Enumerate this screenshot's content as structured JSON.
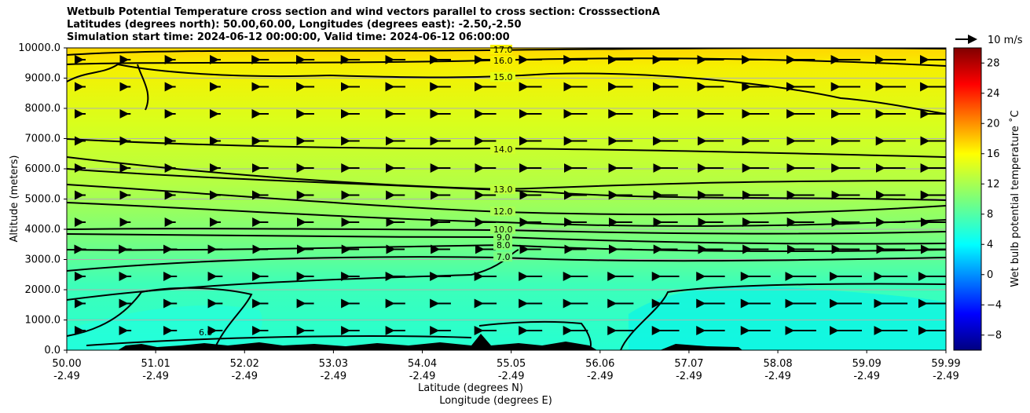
{
  "chart_data": {
    "type": "heatmap",
    "title_lines": [
      "Wetbulb Potential Temperature cross section and wind vectors parallel to cross section: CrosssectionA",
      "Latitudes (degrees north): 50.00,60.00, Longitudes (degrees east): -2.50,-2.50",
      "Simulation start time: 2024-06-12 00:00:00, Valid time: 2024-06-12 06:00:00"
    ],
    "ylabel": "Altitude (meters)",
    "xlabel": "Latitude (degrees N)",
    "xlabel2": "Longitude (degrees E)",
    "ylim": [
      0,
      10000
    ],
    "y_ticks": [
      "0.0",
      "1000.0",
      "2000.0",
      "3000.0",
      "4000.0",
      "5000.0",
      "6000.0",
      "7000.0",
      "8000.0",
      "9000.0",
      "10000.0"
    ],
    "x_range": [
      50.0,
      59.99
    ],
    "x_ticks": [
      {
        "lat": "50.00",
        "lon": "-2.49"
      },
      {
        "lat": "51.01",
        "lon": "-2.49"
      },
      {
        "lat": "52.02",
        "lon": "-2.49"
      },
      {
        "lat": "53.03",
        "lon": "-2.49"
      },
      {
        "lat": "54.04",
        "lon": "-2.49"
      },
      {
        "lat": "55.05",
        "lon": "-2.49"
      },
      {
        "lat": "56.06",
        "lon": "-2.49"
      },
      {
        "lat": "57.07",
        "lon": "-2.49"
      },
      {
        "lat": "58.08",
        "lon": "-2.49"
      },
      {
        "lat": "59.09",
        "lon": "-2.49"
      },
      {
        "lat": "59.99",
        "lon": "-2.49"
      }
    ],
    "grid": true,
    "colorbar": {
      "label": "Wet bulb potential temperature ˚C",
      "range": [
        -10,
        30
      ],
      "ticks": [
        "−8",
        "−4",
        "0",
        "4",
        "8",
        "12",
        "16",
        "20",
        "24",
        "28"
      ],
      "colormap": "jet"
    },
    "quiver_key": "10 m/s",
    "contour_labels": [
      "17.0",
      "16.0",
      "15.0",
      "14.0",
      "13.0",
      "12.0",
      "10.0",
      "9.0",
      "8.0",
      "7.0",
      "6.0"
    ]
  }
}
